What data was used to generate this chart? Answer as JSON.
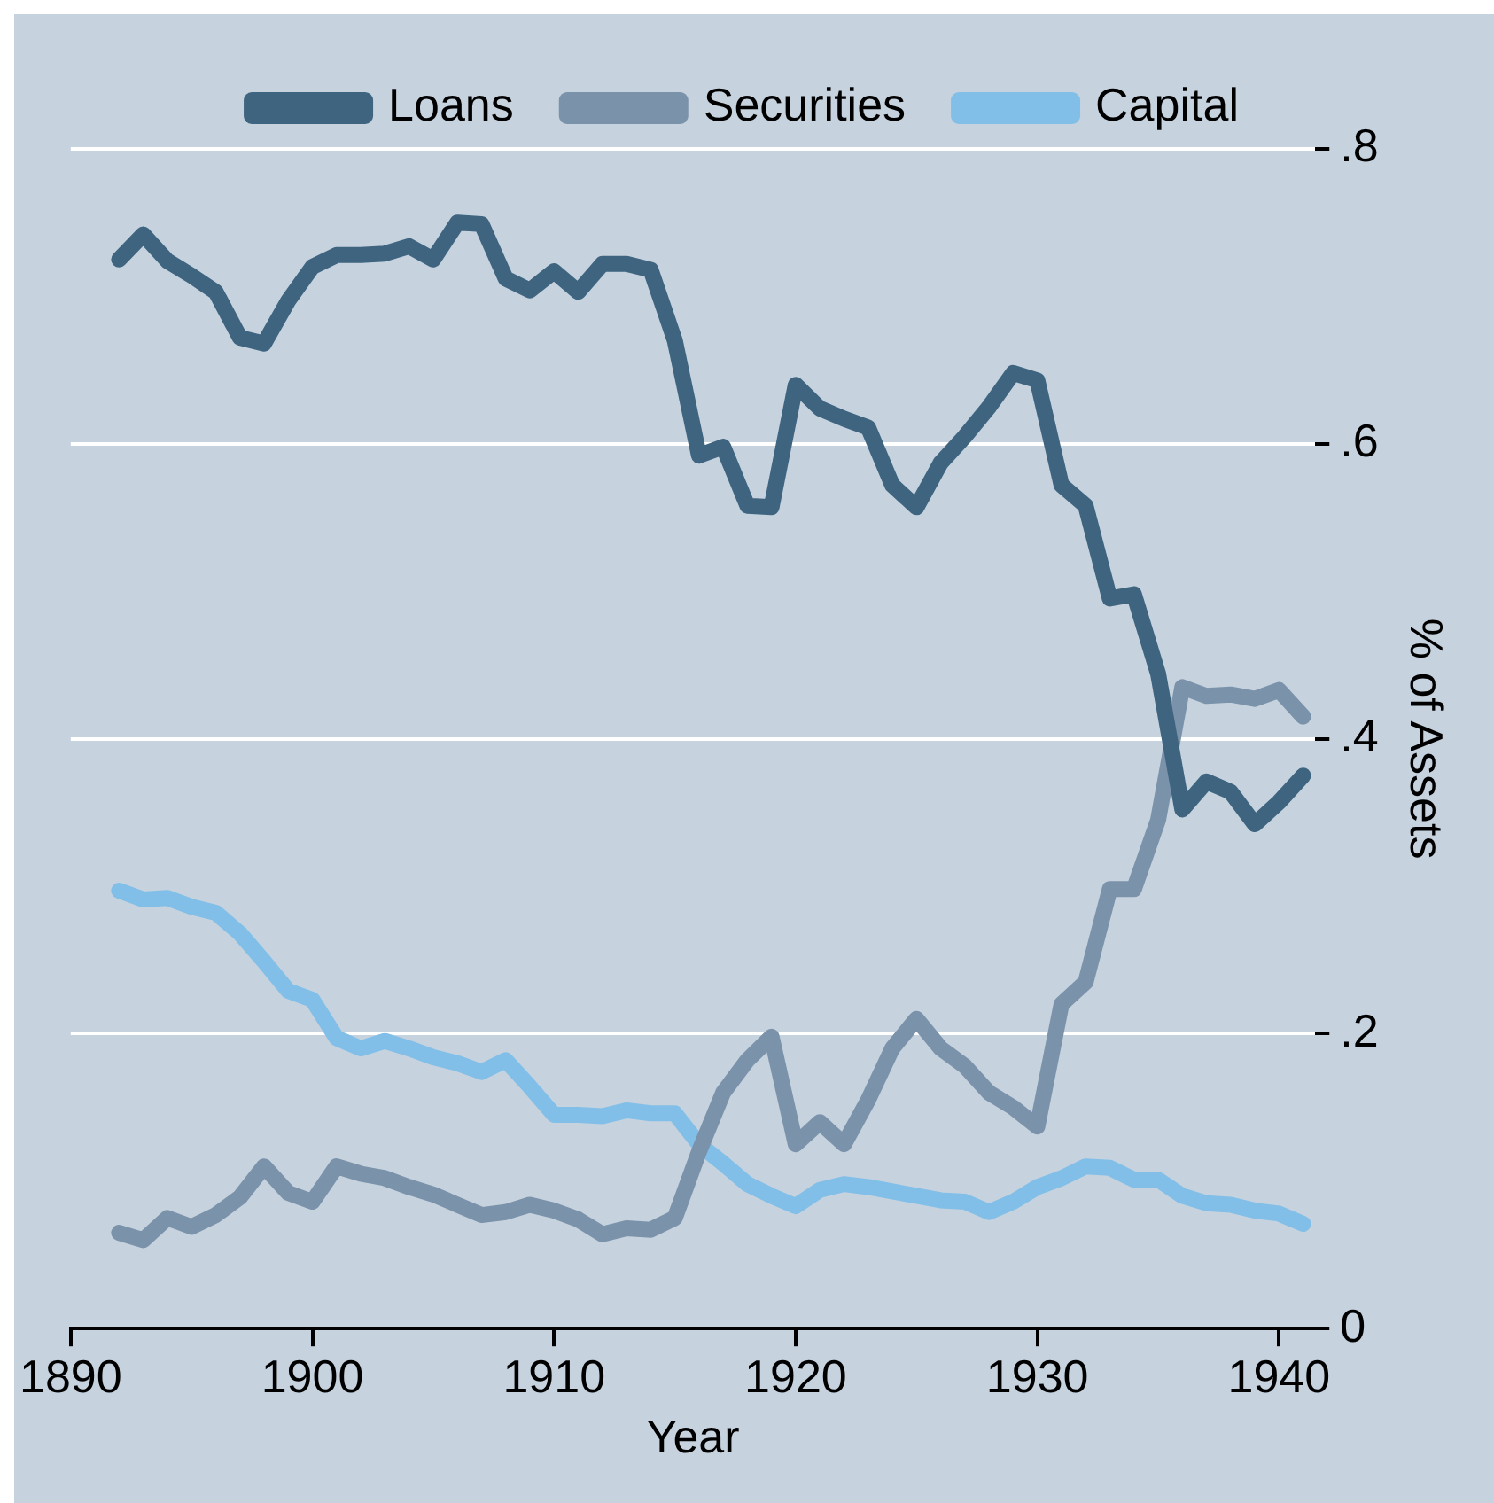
{
  "chart_data": {
    "type": "line",
    "xlabel": "Year",
    "ylabel": "% of Assets",
    "x": [
      1892,
      1893,
      1894,
      1895,
      1896,
      1897,
      1898,
      1899,
      1900,
      1901,
      1902,
      1903,
      1904,
      1905,
      1906,
      1907,
      1908,
      1909,
      1910,
      1911,
      1912,
      1913,
      1914,
      1915,
      1916,
      1917,
      1918,
      1919,
      1920,
      1921,
      1922,
      1923,
      1924,
      1925,
      1926,
      1927,
      1928,
      1929,
      1930,
      1931,
      1932,
      1933,
      1934,
      1935,
      1936,
      1937,
      1938,
      1939,
      1940,
      1941
    ],
    "series": [
      {
        "name": "Loans",
        "color": "#3e6480",
        "values": [
          0.725,
          0.742,
          0.724,
          0.714,
          0.703,
          0.672,
          0.668,
          0.697,
          0.72,
          0.728,
          0.728,
          0.729,
          0.734,
          0.725,
          0.75,
          0.749,
          0.712,
          0.704,
          0.717,
          0.703,
          0.722,
          0.722,
          0.718,
          0.67,
          0.592,
          0.598,
          0.558,
          0.557,
          0.64,
          0.624,
          0.617,
          0.611,
          0.572,
          0.557,
          0.587,
          0.605,
          0.625,
          0.648,
          0.643,
          0.572,
          0.558,
          0.495,
          0.498,
          0.444,
          0.352,
          0.371,
          0.364,
          0.342,
          0.357,
          0.375
        ]
      },
      {
        "name": "Securities",
        "color": "#7b93aa",
        "values": [
          0.065,
          0.06,
          0.075,
          0.069,
          0.077,
          0.089,
          0.11,
          0.092,
          0.086,
          0.11,
          0.105,
          0.102,
          0.096,
          0.091,
          0.084,
          0.077,
          0.079,
          0.084,
          0.08,
          0.074,
          0.064,
          0.068,
          0.067,
          0.075,
          0.12,
          0.16,
          0.182,
          0.198,
          0.125,
          0.14,
          0.125,
          0.155,
          0.19,
          0.21,
          0.19,
          0.178,
          0.16,
          0.15,
          0.137,
          0.22,
          0.235,
          0.298,
          0.298,
          0.345,
          0.435,
          0.429,
          0.43,
          0.427,
          0.433,
          0.415
        ]
      },
      {
        "name": "Capital",
        "color": "#82bfe8",
        "values": [
          0.297,
          0.291,
          0.292,
          0.286,
          0.282,
          0.268,
          0.249,
          0.229,
          0.223,
          0.197,
          0.19,
          0.195,
          0.19,
          0.184,
          0.18,
          0.174,
          0.182,
          0.164,
          0.145,
          0.145,
          0.144,
          0.148,
          0.146,
          0.146,
          0.125,
          0.112,
          0.098,
          0.09,
          0.083,
          0.094,
          0.098,
          0.096,
          0.093,
          0.09,
          0.087,
          0.086,
          0.079,
          0.086,
          0.096,
          0.102,
          0.11,
          0.109,
          0.101,
          0.101,
          0.09,
          0.085,
          0.084,
          0.08,
          0.078,
          0.071
        ]
      }
    ],
    "xlim": [
      1890,
      1941.5
    ],
    "xticks": [
      1890,
      1900,
      1910,
      1920,
      1930,
      1940
    ],
    "ylim": [
      0,
      0.8
    ],
    "yticks": [
      {
        "value": 0,
        "label": "0"
      },
      {
        "value": 0.2,
        "label": ".2"
      },
      {
        "value": 0.4,
        "label": ".4"
      },
      {
        "value": 0.6,
        "label": ".6"
      },
      {
        "value": 0.8,
        "label": ".8"
      }
    ],
    "grid": "y",
    "legend": "top",
    "marker": "none",
    "line_style": "solid"
  }
}
